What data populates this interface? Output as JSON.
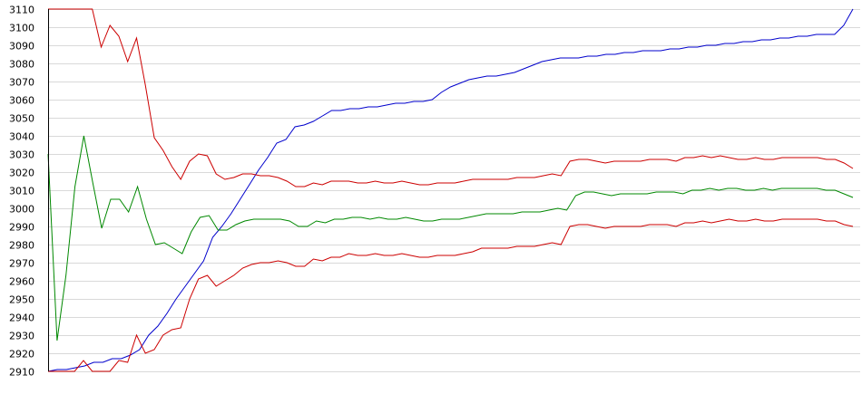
{
  "chart_data": {
    "type": "line",
    "title": "",
    "xlabel": "",
    "ylabel": "",
    "ylim": [
      2910,
      3110
    ],
    "yticks": [
      2910,
      2920,
      2930,
      2940,
      2950,
      2960,
      2970,
      2980,
      2990,
      3000,
      3010,
      3020,
      3030,
      3040,
      3050,
      3060,
      3070,
      3080,
      3090,
      3100,
      3110
    ],
    "grid": true,
    "legend": "none",
    "series": [
      {
        "color": "#0000cc",
        "values": [
          2910,
          2911,
          2911,
          2912,
          2913,
          2915,
          2915,
          2917,
          2917,
          2919,
          2922,
          2930,
          2935,
          2942,
          2950,
          2957,
          2964,
          2971,
          2984,
          2990,
          2997,
          3005,
          3013,
          3021,
          3028,
          3036,
          3038,
          3045,
          3046,
          3048,
          3051,
          3054,
          3054,
          3055,
          3055,
          3056,
          3056,
          3057,
          3058,
          3058,
          3059,
          3059,
          3060,
          3064,
          3067,
          3069,
          3071,
          3072,
          3073,
          3073,
          3074,
          3075,
          3077,
          3079,
          3081,
          3082,
          3083,
          3083,
          3083,
          3084,
          3084,
          3085,
          3085,
          3086,
          3086,
          3087,
          3087,
          3087,
          3088,
          3088,
          3089,
          3089,
          3090,
          3090,
          3091,
          3091,
          3092,
          3092,
          3093,
          3093,
          3094,
          3094,
          3095,
          3095,
          3096,
          3096,
          3096,
          3101,
          3110
        ]
      },
      {
        "color": "#008800",
        "values": [
          3030,
          2927,
          2963,
          3012,
          3040,
          3014,
          2989,
          3005,
          3005,
          2998,
          3012,
          2994,
          2980,
          2981,
          2978,
          2975,
          2987,
          2995,
          2996,
          2988,
          2988,
          2991,
          2993,
          2994,
          2994,
          2994,
          2994,
          2993,
          2990,
          2990,
          2993,
          2992,
          2994,
          2994,
          2995,
          2995,
          2994,
          2995,
          2994,
          2994,
          2995,
          2994,
          2993,
          2993,
          2994,
          2994,
          2994,
          2995,
          2996,
          2997,
          2997,
          2997,
          2997,
          2998,
          2998,
          2998,
          2999,
          3000,
          2999,
          3007,
          3009,
          3009,
          3008,
          3007,
          3008,
          3008,
          3008,
          3008,
          3009,
          3009,
          3009,
          3008,
          3010,
          3010,
          3011,
          3010,
          3011,
          3011,
          3010,
          3010,
          3011,
          3010,
          3011,
          3011,
          3011,
          3011,
          3011,
          3010,
          3010,
          3008,
          3006
        ]
      },
      {
        "color": "#cc0000",
        "values": [
          3110,
          3110,
          3110,
          3110,
          3110,
          3110,
          3089,
          3101,
          3095,
          3081,
          3094,
          3068,
          3039,
          3032,
          3023,
          3016,
          3026,
          3030,
          3029,
          3019,
          3016,
          3017,
          3019,
          3019,
          3018,
          3018,
          3017,
          3015,
          3012,
          3012,
          3014,
          3013,
          3015,
          3015,
          3015,
          3014,
          3014,
          3015,
          3014,
          3014,
          3015,
          3014,
          3013,
          3013,
          3014,
          3014,
          3014,
          3015,
          3016,
          3016,
          3016,
          3016,
          3016,
          3017,
          3017,
          3017,
          3018,
          3019,
          3018,
          3026,
          3027,
          3027,
          3026,
          3025,
          3026,
          3026,
          3026,
          3026,
          3027,
          3027,
          3027,
          3026,
          3028,
          3028,
          3029,
          3028,
          3029,
          3028,
          3027,
          3027,
          3028,
          3027,
          3027,
          3028,
          3028,
          3028,
          3028,
          3028,
          3027,
          3027,
          3025,
          3022
        ]
      },
      {
        "color": "#cc0000",
        "values": [
          2910,
          2910,
          2910,
          2910,
          2916,
          2910,
          2910,
          2910,
          2916,
          2915,
          2930,
          2920,
          2922,
          2930,
          2933,
          2934,
          2950,
          2961,
          2963,
          2957,
          2960,
          2963,
          2967,
          2969,
          2970,
          2970,
          2971,
          2970,
          2968,
          2968,
          2972,
          2971,
          2973,
          2973,
          2975,
          2974,
          2974,
          2975,
          2974,
          2974,
          2975,
          2974,
          2973,
          2973,
          2974,
          2974,
          2974,
          2975,
          2976,
          2978,
          2978,
          2978,
          2978,
          2979,
          2979,
          2979,
          2980,
          2981,
          2980,
          2990,
          2991,
          2991,
          2990,
          2989,
          2990,
          2990,
          2990,
          2990,
          2991,
          2991,
          2991,
          2990,
          2992,
          2992,
          2993,
          2992,
          2993,
          2994,
          2993,
          2993,
          2994,
          2993,
          2993,
          2994,
          2994,
          2994,
          2994,
          2994,
          2993,
          2993,
          2991,
          2990
        ]
      }
    ]
  }
}
